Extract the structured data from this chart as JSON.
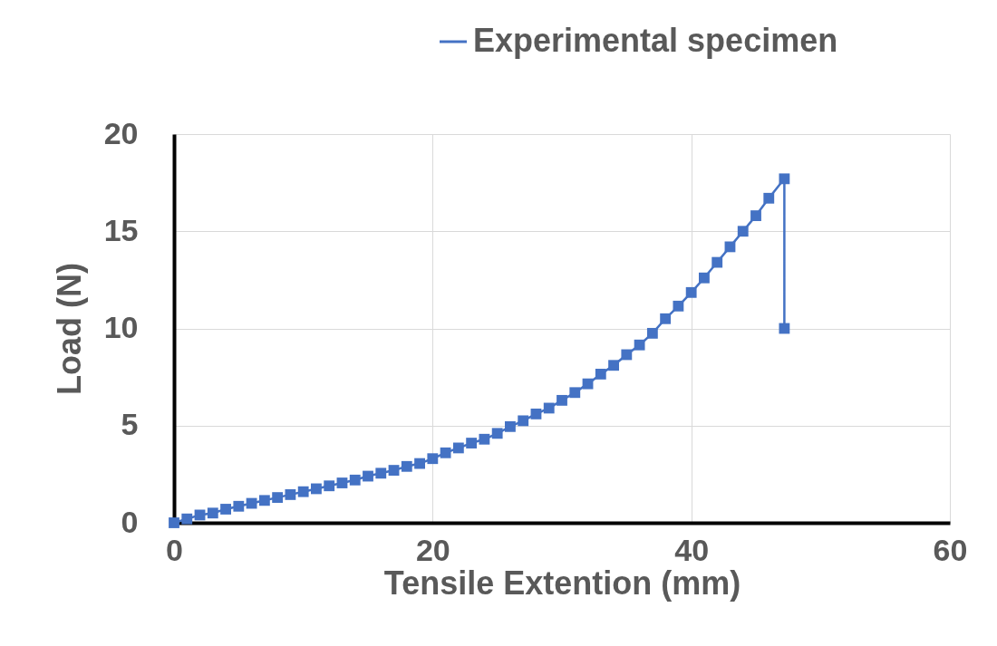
{
  "chart_data": {
    "type": "line",
    "xlabel": "Tensile Extention (mm)",
    "ylabel": "Load (N)",
    "x": [
      0,
      1,
      2,
      3,
      4,
      5,
      6,
      7,
      8,
      9,
      10,
      11,
      12,
      13,
      14,
      15,
      16,
      17,
      18,
      19,
      20,
      21,
      22,
      23,
      24,
      25,
      26,
      27,
      28,
      29,
      30,
      31,
      32,
      33,
      34,
      35,
      36,
      37,
      38,
      39,
      40,
      41,
      42,
      43,
      44,
      45,
      46,
      47.2,
      47.2
    ],
    "series": [
      {
        "name": "Experimental specimen",
        "color": "#4472c4",
        "values": [
          0,
          0.2,
          0.4,
          0.5,
          0.7,
          0.85,
          1.0,
          1.15,
          1.3,
          1.45,
          1.6,
          1.75,
          1.9,
          2.05,
          2.2,
          2.4,
          2.55,
          2.7,
          2.9,
          3.05,
          3.3,
          3.6,
          3.85,
          4.1,
          4.3,
          4.6,
          4.95,
          5.25,
          5.6,
          5.9,
          6.3,
          6.7,
          7.15,
          7.65,
          8.1,
          8.65,
          9.15,
          9.75,
          10.5,
          11.15,
          11.85,
          12.6,
          13.4,
          14.2,
          15.0,
          15.8,
          16.7,
          17.7,
          10
        ]
      }
    ],
    "xlim": [
      0,
      60
    ],
    "xticks": [
      0,
      20,
      40,
      60
    ],
    "ylim": [
      0,
      20
    ],
    "yticks": [
      0,
      5,
      10,
      15,
      20
    ],
    "grid": true,
    "legend": "top",
    "marker": "square",
    "line_style": "solid"
  }
}
